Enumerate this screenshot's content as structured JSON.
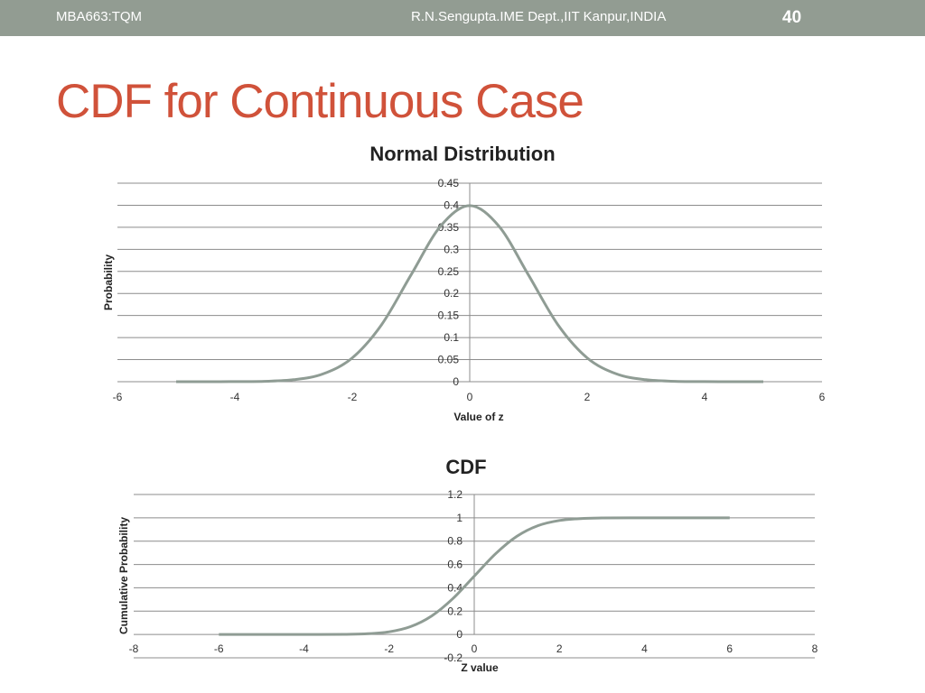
{
  "header": {
    "course": "MBA663:TQM",
    "author": "R.N.Sengupta.IME Dept.,IIT Kanpur,INDIA",
    "page": "40"
  },
  "slide": {
    "title": "CDF for Continuous Case"
  },
  "colors": {
    "header_bg": "#929c92",
    "title": "#d0523a",
    "curve": "#8f9c94"
  },
  "chart_data": [
    {
      "type": "line",
      "title": "Normal Distribution",
      "xlabel": "Value of z",
      "ylabel": "Probability",
      "xlim": [
        -6,
        6
      ],
      "ylim": [
        0,
        0.45
      ],
      "xticks": [
        "-6",
        "-4",
        "-2",
        "0",
        "2",
        "4",
        "6"
      ],
      "yticks": [
        "0",
        "0.05",
        "0.1",
        "0.15",
        "0.2",
        "0.25",
        "0.3",
        "0.35",
        "0.4",
        "0.45"
      ],
      "grid": true,
      "series": [
        {
          "x": [
            -5,
            -4.5,
            -4,
            -3.5,
            -3,
            -2.5,
            -2,
            -1.5,
            -1,
            -0.5,
            0,
            0.5,
            1,
            1.5,
            2,
            2.5,
            3,
            3.5,
            4,
            4.5,
            5
          ],
          "y": [
            1.5e-06,
            1.6e-05,
            0.000134,
            0.000873,
            0.00443,
            0.0175,
            0.054,
            0.1295,
            0.242,
            0.352,
            0.399,
            0.352,
            0.242,
            0.1295,
            0.054,
            0.0175,
            0.00443,
            0.000873,
            0.000134,
            1.6e-05,
            1.5e-06
          ]
        }
      ]
    },
    {
      "type": "line",
      "title": "CDF",
      "xlabel": "Z value",
      "ylabel": "Cumulative Probability",
      "xlim": [
        -8,
        8
      ],
      "ylim": [
        -0.2,
        1.2
      ],
      "xticks": [
        "-8",
        "-6",
        "-4",
        "-2",
        "0",
        "2",
        "4",
        "6",
        "8"
      ],
      "yticks": [
        "-0.2",
        "0",
        "0.2",
        "0.4",
        "0.6",
        "0.8",
        "1",
        "1.2"
      ],
      "grid": true,
      "series": [
        {
          "x": [
            -6,
            -5,
            -4,
            -3,
            -2.5,
            -2,
            -1.5,
            -1,
            -0.5,
            0,
            0.5,
            1,
            1.5,
            2,
            2.5,
            3,
            4,
            5,
            6
          ],
          "y": [
            0,
            0,
            3e-05,
            0.00135,
            0.0062,
            0.0228,
            0.0668,
            0.1587,
            0.3085,
            0.5,
            0.6915,
            0.8413,
            0.9332,
            0.9772,
            0.9938,
            0.99865,
            0.99997,
            1,
            1
          ]
        }
      ]
    }
  ]
}
